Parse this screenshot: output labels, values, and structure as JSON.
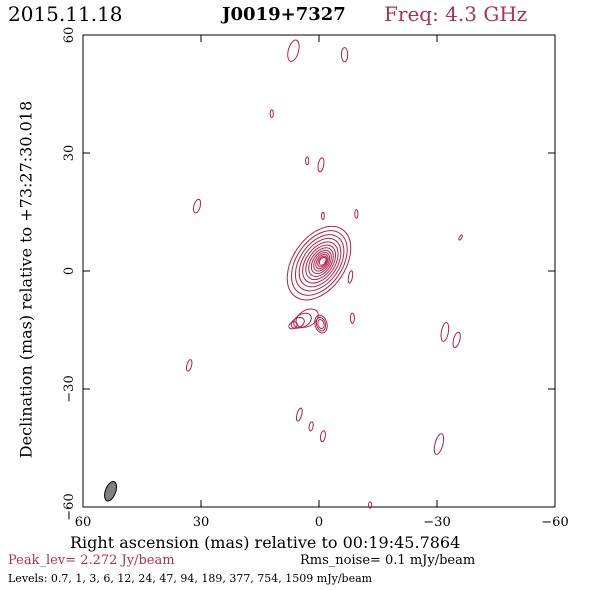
{
  "header": {
    "date": "2015.11.18",
    "source": "J0019+7327",
    "freq": "Freq: 4.3 GHz"
  },
  "colors": {
    "contour": "#b0204a",
    "beam": "#808080"
  },
  "chart_data": {
    "type": "contour",
    "xlabel": "Right ascension (mas) relative to 00:19:45.7864",
    "ylabel": "Declination (mas) relative to +73:27:30.018",
    "xlim": [
      60,
      -60
    ],
    "ylim": [
      -60,
      60
    ],
    "xticks": [
      60,
      30,
      0,
      -30,
      -60
    ],
    "yticks": [
      60,
      30,
      0,
      -30,
      -60
    ],
    "xtick_labels": [
      "60",
      "30",
      "0",
      "−30",
      "−60"
    ],
    "ytick_labels": [
      "60",
      "30",
      "0",
      "−30",
      "−60"
    ],
    "beam": {
      "x": 53,
      "y": -56,
      "major": 5.2,
      "minor": 2.6,
      "pa": 20
    },
    "core": {
      "x": 0,
      "y": 2,
      "count": 12
    },
    "components": [
      {
        "x": 6.5,
        "y": 56,
        "a": 1.3,
        "b": 2.8,
        "angle": 15
      },
      {
        "x": -6.5,
        "y": 55,
        "a": 0.8,
        "b": 1.8,
        "angle": 0
      },
      {
        "x": 12,
        "y": 40,
        "a": 0.4,
        "b": 1.0,
        "angle": 0
      },
      {
        "x": -0.5,
        "y": 27,
        "a": 0.7,
        "b": 1.8,
        "angle": 10
      },
      {
        "x": 3,
        "y": 28,
        "a": 0.4,
        "b": 1.0,
        "angle": 0
      },
      {
        "x": 31,
        "y": 16.5,
        "a": 0.8,
        "b": 1.8,
        "angle": 15
      },
      {
        "x": -1,
        "y": 14,
        "a": 0.35,
        "b": 0.9,
        "angle": 0
      },
      {
        "x": -9.5,
        "y": 14.5,
        "a": 0.4,
        "b": 1.1,
        "angle": 0
      },
      {
        "x": -36,
        "y": 8.5,
        "a": 0.3,
        "b": 0.7,
        "angle": 30
      },
      {
        "x": -8,
        "y": -1.5,
        "a": 0.5,
        "b": 1.6,
        "angle": 10
      },
      {
        "x": -8.5,
        "y": -12,
        "a": 0.5,
        "b": 1.3,
        "angle": 0
      },
      {
        "x": -32,
        "y": -15.5,
        "a": 0.9,
        "b": 2.4,
        "angle": 10
      },
      {
        "x": -35,
        "y": -17.5,
        "a": 0.8,
        "b": 2.0,
        "angle": 15
      },
      {
        "x": 33,
        "y": -24,
        "a": 0.6,
        "b": 1.5,
        "angle": 15
      },
      {
        "x": 5,
        "y": -36.5,
        "a": 0.6,
        "b": 1.7,
        "angle": 15
      },
      {
        "x": 2,
        "y": -39.5,
        "a": 0.5,
        "b": 1.2,
        "angle": 10
      },
      {
        "x": -1,
        "y": -42,
        "a": 0.6,
        "b": 1.4,
        "angle": 10
      },
      {
        "x": -30.5,
        "y": -44,
        "a": 1.0,
        "b": 2.7,
        "angle": 15
      },
      {
        "x": -13,
        "y": -59.5,
        "a": 0.4,
        "b": 0.8,
        "angle": 0
      }
    ]
  },
  "footer": {
    "peak": "Peak_lev=  2.272 Jy/beam",
    "rms": "Rms_noise=  0.1 mJy/beam",
    "levels": "Levels: 0.7,   1,   3,   6,  12,  24,  47,  94, 189, 377, 754, 1509 mJy/beam"
  }
}
